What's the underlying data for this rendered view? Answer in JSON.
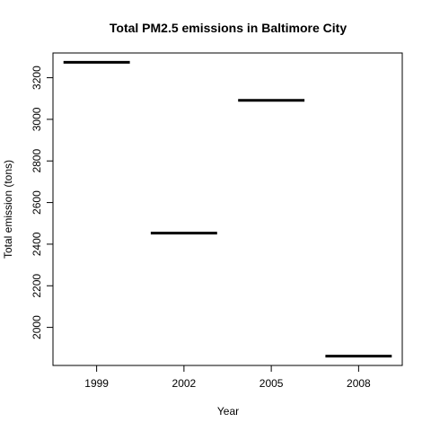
{
  "chart_data": {
    "type": "bar",
    "title": "Total PM2.5 emissions in Baltimore City",
    "xlabel": "Year",
    "ylabel": "Total emission (tons)",
    "categories": [
      "1999",
      "2002",
      "2005",
      "2008"
    ],
    "values": [
      3274,
      2453,
      3091,
      1862
    ],
    "yticks": [
      2000,
      2200,
      2400,
      2600,
      2800,
      3000,
      3200
    ],
    "ylim": [
      1817,
      3319
    ],
    "grid": false,
    "legend": "none",
    "mark_color": "#000000"
  }
}
